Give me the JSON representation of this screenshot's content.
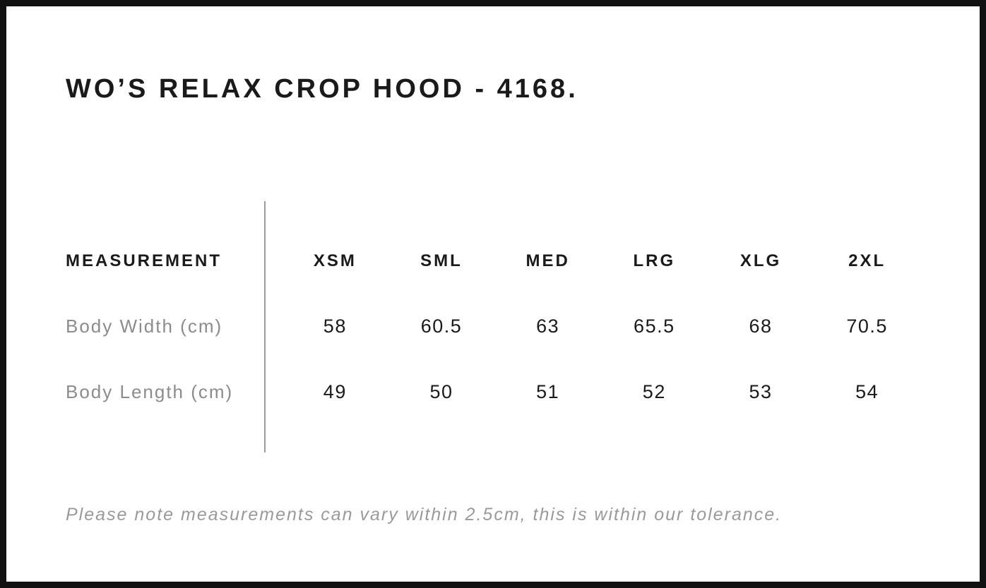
{
  "title": "WO’S RELAX CROP HOOD - 4168.",
  "table": {
    "header_label": "MEASUREMENT",
    "sizes": [
      "XSM",
      "SML",
      "MED",
      "LRG",
      "XLG",
      "2XL"
    ],
    "rows": [
      {
        "label": "Body Width (cm)",
        "values": [
          "58",
          "60.5",
          "63",
          "65.5",
          "68",
          "70.5"
        ]
      },
      {
        "label": "Body Length (cm)",
        "values": [
          "49",
          "50",
          "51",
          "52",
          "53",
          "54"
        ]
      }
    ]
  },
  "note": "Please note measurements can vary within 2.5cm, this is within our tolerance.",
  "colors": {
    "background": "#ffffff",
    "border": "#111111",
    "heading": "#1a1a1a",
    "value": "#1a1a1a",
    "label": "#8c8c8c",
    "note": "#9a9a9a",
    "divider": "#9a9a9a"
  }
}
